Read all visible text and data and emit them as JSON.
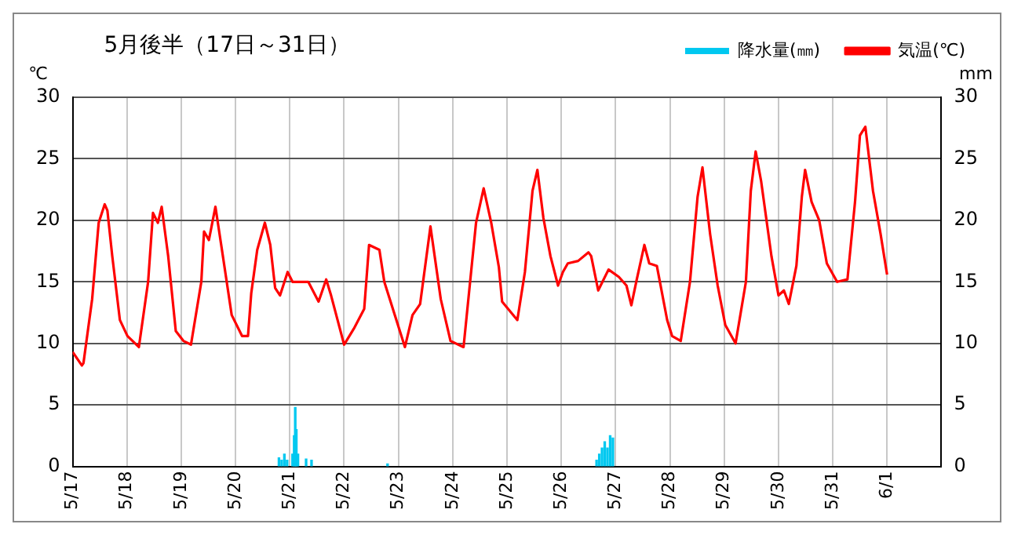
{
  "chart_data": {
    "type": "line",
    "title": "5月後半（17日～31日）",
    "ylabel": "℃",
    "y2label": "mm",
    "legend": "top right",
    "grid": true,
    "xlim": [
      "--05-17",
      "--06-02"
    ],
    "xticks": [
      {
        "value": "--05-17",
        "label": "5/17"
      },
      {
        "value": "--05-18",
        "label": "5/18"
      },
      {
        "value": "--05-19",
        "label": "5/19"
      },
      {
        "value": "--05-20",
        "label": "5/20"
      },
      {
        "value": "--05-21",
        "label": "5/21"
      },
      {
        "value": "--05-22",
        "label": "5/22"
      },
      {
        "value": "--05-23",
        "label": "5/23"
      },
      {
        "value": "--05-24",
        "label": "5/24"
      },
      {
        "value": "--05-25",
        "label": "5/25"
      },
      {
        "value": "--05-26",
        "label": "5/26"
      },
      {
        "value": "--05-27",
        "label": "5/27"
      },
      {
        "value": "--05-28",
        "label": "5/28"
      },
      {
        "value": "--05-29",
        "label": "5/29"
      },
      {
        "value": "--05-30",
        "label": "5/30"
      },
      {
        "value": "--05-31",
        "label": "5/31"
      },
      {
        "value": "--06-01",
        "label": "6/1"
      }
    ],
    "ylim": [
      0,
      30
    ],
    "yticks": [
      0,
      5,
      10,
      15,
      20,
      25,
      30
    ],
    "y2lim": [
      0,
      30
    ],
    "y2ticks": [
      0,
      5,
      10,
      15,
      20,
      25,
      30
    ],
    "series": [
      {
        "name": "降水量(㎜)",
        "type": "bar",
        "axis": "y2",
        "color": "#00c8f0",
        "x": [
          "--05-20T19:12",
          "--05-20T20:24",
          "--05-20T21:36",
          "--05-20T22:48",
          "--05-21T01:12",
          "--05-21T01:55",
          "--05-21T02:24",
          "--05-21T02:53",
          "--05-21T03:36",
          "--05-21T07:12",
          "--05-21T09:36",
          "--05-22T19:12",
          "--05-26T15:36",
          "--05-26T16:48",
          "--05-26T18:00",
          "--05-26T19:12",
          "--05-26T20:24",
          "--05-26T21:36",
          "--05-26T22:48"
        ],
        "values": [
          0.7,
          0.5,
          1.0,
          0.5,
          1.0,
          2.5,
          4.8,
          3.0,
          1.0,
          0.6,
          0.5,
          0.2,
          0.5,
          1.0,
          1.5,
          2.0,
          1.5,
          2.5,
          2.3
        ]
      },
      {
        "name": "気温(℃)",
        "color": "#ff0000",
        "x": [
          "--05-17T00:00",
          "--05-17T04:05",
          "--05-17T04:48",
          "--05-17T08:38",
          "--05-17T11:31",
          "--05-17T14:10",
          "--05-17T15:22",
          "--05-17T17:31",
          "--05-17T20:53",
          "--05-18T00:14",
          "--05-18T05:17",
          "--05-18T09:22",
          "--05-18T11:31",
          "--05-18T13:41",
          "--05-18T15:22",
          "--05-18T18:14",
          "--05-18T21:36",
          "--05-19T00:58",
          "--05-19T04:19",
          "--05-19T08:53",
          "--05-19T10:05",
          "--05-19T12:14",
          "--05-19T15:07",
          "--05-19T18:00",
          "--05-19T22:19",
          "--05-20T02:53",
          "--05-20T05:31",
          "--05-20T06:58",
          "--05-20T09:36",
          "--05-20T12:58",
          "--05-20T15:22",
          "--05-20T17:31",
          "--05-20T19:41",
          "--05-20T23:02",
          "--05-21T01:12",
          "--05-21T08:10",
          "--05-21T12:43",
          "--05-21T16:05",
          "--05-21T18:14",
          "--05-22T00:00",
          "--05-22T04:19",
          "--05-22T08:53",
          "--05-22T11:02",
          "--05-22T15:36",
          "--05-22T17:46",
          "--05-23T02:53",
          "--05-23T06:14",
          "--05-23T09:36",
          "--05-23T14:10",
          "--05-23T18:43",
          "--05-23T23:02",
          "--05-24T04:48",
          "--05-24T10:19",
          "--05-24T13:41",
          "--05-24T17:02",
          "--05-24T20:24",
          "--05-24T21:50",
          "--05-25T04:34",
          "--05-25T07:55",
          "--05-25T11:17",
          "--05-25T13:26",
          "--05-25T16:05",
          "--05-25T19:12",
          "--05-25T22:34",
          "--05-26T00:43",
          "--05-26T02:53",
          "--05-26T07:26",
          "--05-26T12:00",
          "--05-26T13:12",
          "--05-26T16:19",
          "--05-26T20:53",
          "--05-27T01:26",
          "--05-27T04:48",
          "--05-27T06:58",
          "--05-27T09:22",
          "--05-27T12:43",
          "--05-27T14:53",
          "--05-27T18:14",
          "--05-27T22:48",
          "--05-28T00:58",
          "--05-28T04:48",
          "--05-28T08:53",
          "--05-28T12:14",
          "--05-28T14:24",
          "--05-28T17:46",
          "--05-28T21:07",
          "--05-29T00:29",
          "--05-29T05:02",
          "--05-29T09:36",
          "--05-29T11:46",
          "--05-29T13:55",
          "--05-29T16:19",
          "--05-29T20:53",
          "--05-30T00:00",
          "--05-30T02:24",
          "--05-30T04:34",
          "--05-30T07:55",
          "--05-30T10:19",
          "--05-30T11:46",
          "--05-30T14:38",
          "--05-30T18:00",
          "--05-30T21:22",
          "--05-31T01:55",
          "--05-31T06:29",
          "--05-31T09:50",
          "--05-31T12:00",
          "--05-31T14:24",
          "--05-31T17:46",
          "--05-31T21:07",
          "--06-01T00:00"
        ],
        "values": [
          9.3,
          8.2,
          8.4,
          13.6,
          19.8,
          21.3,
          20.8,
          17.1,
          11.9,
          10.6,
          9.7,
          15,
          20.6,
          19.8,
          21.1,
          17.1,
          11.0,
          10.2,
          9.9,
          15,
          19.1,
          18.4,
          21.1,
          17.6,
          12.3,
          10.6,
          10.6,
          14.1,
          17.6,
          19.8,
          18.0,
          14.5,
          13.9,
          15.8,
          15,
          15,
          13.4,
          15.2,
          13.9,
          9.9,
          11.2,
          12.8,
          18.0,
          17.6,
          15,
          9.7,
          12.3,
          13.2,
          19.5,
          13.6,
          10.2,
          9.7,
          19.8,
          22.6,
          19.8,
          16.2,
          13.4,
          11.9,
          15.8,
          22.4,
          24.1,
          20.2,
          17.1,
          14.7,
          15.8,
          16.5,
          16.7,
          17.4,
          17.1,
          14.3,
          16.0,
          15.4,
          14.7,
          13.1,
          15.2,
          18.0,
          16.5,
          16.3,
          11.9,
          10.6,
          10.2,
          15,
          21.9,
          24.3,
          18.9,
          14.7,
          11.5,
          10.0,
          15,
          22.4,
          25.6,
          23.2,
          17.1,
          13.9,
          14.3,
          13.2,
          16.3,
          21.9,
          24.1,
          21.5,
          20.0,
          16.5,
          15,
          15.2,
          21.5,
          26.9,
          27.6,
          22.4,
          18.9,
          15.6
        ]
      }
    ]
  }
}
